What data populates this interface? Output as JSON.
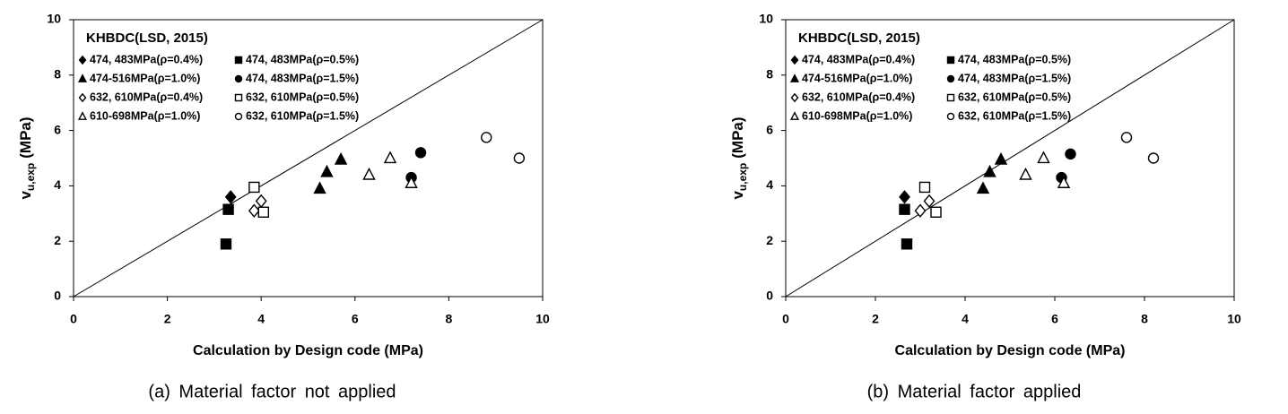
{
  "chart_data": [
    {
      "type": "scatter",
      "caption": "(a) Material factor not applied",
      "x_label": "Calculation by Design code (MPa)",
      "y_label": {
        "main": "v",
        "sub": "u,exp",
        "unit": "(MPa)"
      },
      "legend_title": "KHBDC(LSD, 2015)",
      "xlim": [
        0,
        10
      ],
      "ylim": [
        0,
        10
      ],
      "xticks": [
        0,
        2,
        4,
        6,
        8,
        10
      ],
      "yticks": [
        0,
        2,
        4,
        6,
        8,
        10
      ],
      "series": [
        {
          "name": "474, 483MPa(ρ=0.4%)",
          "color": "#000000",
          "marker": "diamond",
          "filled": true,
          "x": [
            3.35
          ],
          "values": [
            3.6
          ]
        },
        {
          "name": "474, 483MPa(ρ=0.5%)",
          "color": "#000000",
          "marker": "square",
          "filled": true,
          "x": [
            3.3,
            3.25
          ],
          "values": [
            3.15,
            1.9
          ]
        },
        {
          "name": "474-516MPa(ρ=1.0%)",
          "color": "#000000",
          "marker": "triangle",
          "filled": true,
          "x": [
            5.25,
            5.4,
            5.7
          ],
          "values": [
            3.9,
            4.5,
            4.95
          ]
        },
        {
          "name": "474, 483MPa(ρ=1.5%)",
          "color": "#000000",
          "marker": "circle",
          "filled": true,
          "x": [
            7.4,
            7.2
          ],
          "values": [
            5.2,
            4.3
          ]
        },
        {
          "name": "632, 610MPa(ρ=0.4%)",
          "color": "#000000",
          "marker": "diamond",
          "filled": false,
          "x": [
            3.85,
            4.0
          ],
          "values": [
            3.1,
            3.45
          ]
        },
        {
          "name": "632, 610MPa(ρ=0.5%)",
          "color": "#000000",
          "marker": "square",
          "filled": false,
          "x": [
            3.85,
            4.05
          ],
          "values": [
            3.95,
            3.05
          ]
        },
        {
          "name": "610-698MPa(ρ=1.0%)",
          "color": "#000000",
          "marker": "triangle",
          "filled": false,
          "x": [
            6.3,
            6.75,
            7.2
          ],
          "values": [
            4.4,
            5.0,
            4.1
          ]
        },
        {
          "name": "632, 610MPa(ρ=1.5%)",
          "color": "#000000",
          "marker": "circle",
          "filled": false,
          "x": [
            8.8,
            9.5
          ],
          "values": [
            5.75,
            5.0
          ]
        }
      ]
    },
    {
      "type": "scatter",
      "caption": "(b) Material factor applied",
      "x_label": "Calculation by Design code (MPa)",
      "y_label": {
        "main": "v",
        "sub": "u,exp",
        "unit": "(MPa)"
      },
      "legend_title": "KHBDC(LSD, 2015)",
      "xlim": [
        0,
        10
      ],
      "ylim": [
        0,
        10
      ],
      "xticks": [
        0,
        2,
        4,
        6,
        8,
        10
      ],
      "yticks": [
        0,
        2,
        4,
        6,
        8,
        10
      ],
      "series": [
        {
          "name": "474, 483MPa(ρ=0.4%)",
          "color": "#000000",
          "marker": "diamond",
          "filled": true,
          "x": [
            2.65
          ],
          "values": [
            3.6
          ]
        },
        {
          "name": "474, 483MPa(ρ=0.5%)",
          "color": "#000000",
          "marker": "square",
          "filled": true,
          "x": [
            2.65,
            2.7
          ],
          "values": [
            3.15,
            1.9
          ]
        },
        {
          "name": "474-516MPa(ρ=1.0%)",
          "color": "#000000",
          "marker": "triangle",
          "filled": true,
          "x": [
            4.4,
            4.55,
            4.8
          ],
          "values": [
            3.9,
            4.5,
            4.95
          ]
        },
        {
          "name": "474, 483MPa(ρ=1.5%)",
          "color": "#000000",
          "marker": "circle",
          "filled": true,
          "x": [
            6.35,
            6.15
          ],
          "values": [
            5.15,
            4.3
          ]
        },
        {
          "name": "632, 610MPa(ρ=0.4%)",
          "color": "#000000",
          "marker": "diamond",
          "filled": false,
          "x": [
            3.0,
            3.2
          ],
          "values": [
            3.1,
            3.45
          ]
        },
        {
          "name": "632, 610MPa(ρ=0.5%)",
          "color": "#000000",
          "marker": "square",
          "filled": false,
          "x": [
            3.1,
            3.35
          ],
          "values": [
            3.95,
            3.05
          ]
        },
        {
          "name": "610-698MPa(ρ=1.0%)",
          "color": "#000000",
          "marker": "triangle",
          "filled": false,
          "x": [
            5.35,
            5.75,
            6.2
          ],
          "values": [
            4.4,
            5.0,
            4.1
          ]
        },
        {
          "name": "632, 610MPa(ρ=1.5%)",
          "color": "#000000",
          "marker": "circle",
          "filled": false,
          "x": [
            7.6,
            8.2
          ],
          "values": [
            5.75,
            5.0
          ]
        }
      ]
    }
  ]
}
